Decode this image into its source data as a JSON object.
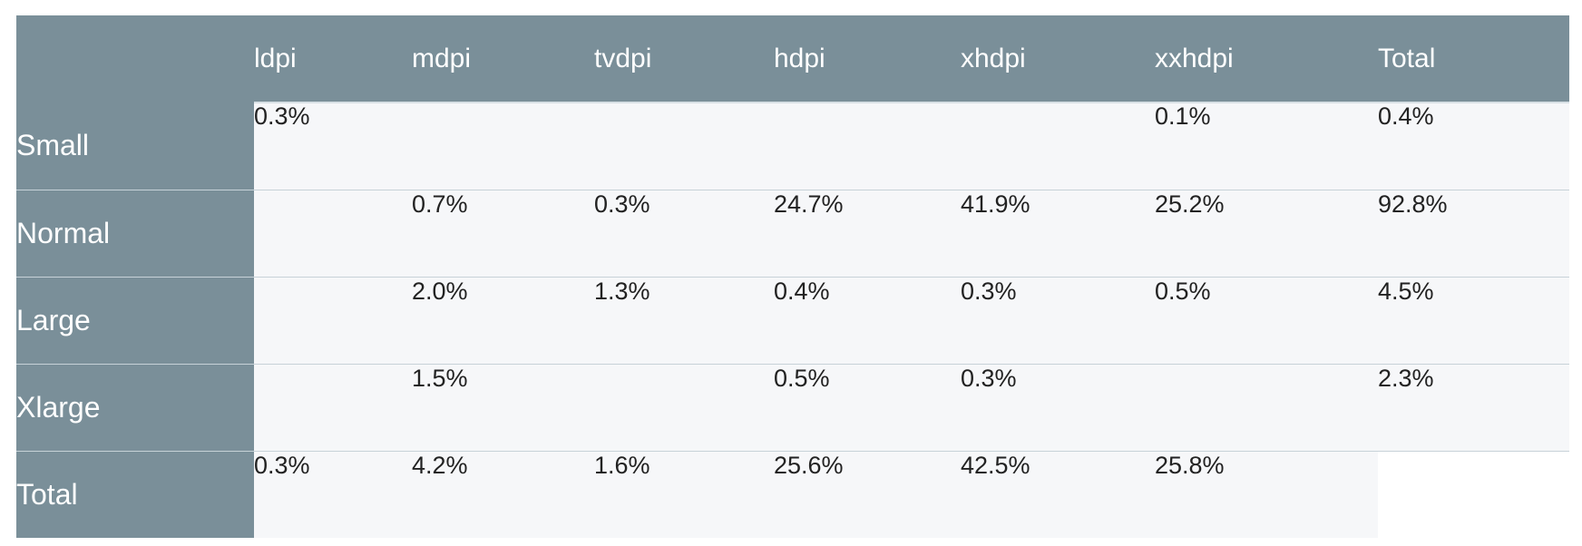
{
  "chart_data": {
    "type": "table",
    "columns": [
      "",
      "ldpi",
      "mdpi",
      "tvdpi",
      "hdpi",
      "xhdpi",
      "xxhdpi",
      "Total"
    ],
    "rows": [
      {
        "label": "Small",
        "values": [
          "0.3%",
          "",
          "",
          "",
          "",
          "0.1%",
          "0.4%"
        ]
      },
      {
        "label": "Normal",
        "values": [
          "",
          "0.7%",
          "0.3%",
          "24.7%",
          "41.9%",
          "25.2%",
          "92.8%"
        ]
      },
      {
        "label": "Large",
        "values": [
          "",
          "2.0%",
          "1.3%",
          "0.4%",
          "0.3%",
          "0.5%",
          "4.5%"
        ]
      },
      {
        "label": "Xlarge",
        "values": [
          "",
          "1.5%",
          "",
          "0.5%",
          "0.3%",
          "",
          "2.3%"
        ]
      },
      {
        "label": "Total",
        "values": [
          "0.3%",
          "4.2%",
          "1.6%",
          "25.6%",
          "42.5%",
          "25.8%",
          ""
        ]
      }
    ],
    "colors": {
      "header_bg": "#7a8f99",
      "header_text": "#ffffff",
      "cell_bg": "#f6f7f9",
      "cell_text": "#222222",
      "divider": "#c7d2d8"
    }
  }
}
